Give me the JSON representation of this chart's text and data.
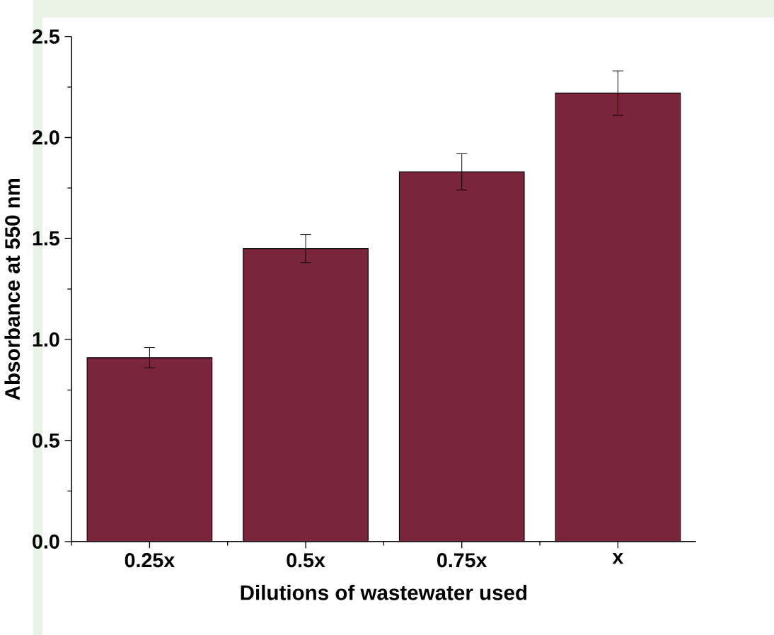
{
  "chart_data": {
    "type": "bar",
    "xlabel": "Dilutions of wastewater used",
    "ylabel": "Absorbance at 550 nm",
    "categories": [
      "0.25x",
      "0.5x",
      "0.75x",
      "x"
    ],
    "values": [
      0.91,
      1.45,
      1.83,
      2.22
    ],
    "errors": [
      0.05,
      0.07,
      0.09,
      0.11
    ],
    "color": "#7b253d",
    "ylim": [
      0,
      2.5
    ],
    "yticks": [
      {
        "value": 0,
        "label": "0.0"
      },
      {
        "value": 0.5,
        "label": "0.5"
      },
      {
        "value": 1,
        "label": "1.0"
      },
      {
        "value": 1.5,
        "label": "1.5"
      },
      {
        "value": 2,
        "label": "2.0"
      },
      {
        "value": 2.5,
        "label": "2.5"
      }
    ]
  }
}
